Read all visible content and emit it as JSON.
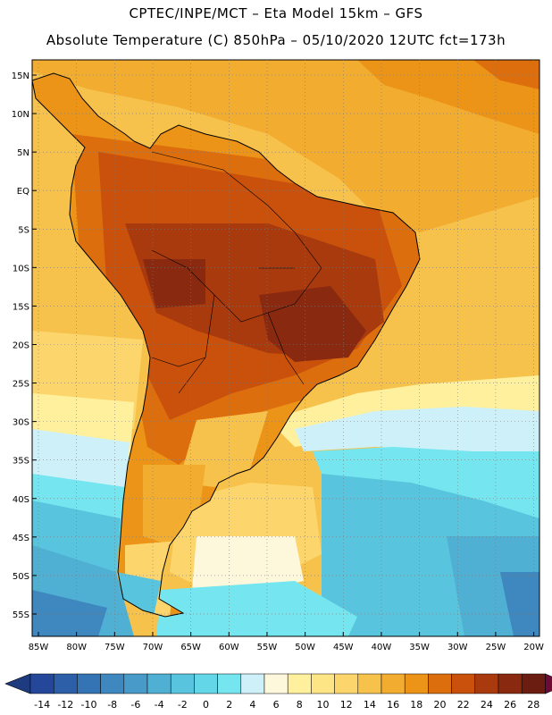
{
  "title_line1": "CPTEC/INPE/MCT –  Eta Model 15km – GFS",
  "title_line2": "Absolute Temperature (C) 850hPa – 05/10/2020 12UTC fct=173h",
  "lat_labels": [
    "15N",
    "10N",
    "5N",
    "EQ",
    "5S",
    "10S",
    "15S",
    "20S",
    "25S",
    "30S",
    "35S",
    "40S",
    "45S",
    "50S",
    "55S"
  ],
  "lon_labels": [
    "85W",
    "80W",
    "75W",
    "70W",
    "65W",
    "60W",
    "55W",
    "50W",
    "45W",
    "40W",
    "35W",
    "30W",
    "25W",
    "20W"
  ],
  "colorbar": {
    "ticks": [
      "-14",
      "-12",
      "-10",
      "-8",
      "-6",
      "-4",
      "-2",
      "0",
      "2",
      "4",
      "6",
      "8",
      "10",
      "12",
      "14",
      "16",
      "18",
      "20",
      "22",
      "24",
      "26",
      "28"
    ],
    "colors": [
      "#25479a",
      "#2d5ea8",
      "#3574b4",
      "#3f87bf",
      "#489bc8",
      "#4fb0d3",
      "#59c4dd",
      "#63d6e7",
      "#75e6ef",
      "#cef1f9",
      "#fdf8dc",
      "#fff09e",
      "#fde484",
      "#fcd66c",
      "#f6c24b",
      "#f2ac30",
      "#ec9417",
      "#dc6e0e",
      "#c9510c",
      "#a83a0d",
      "#892a10",
      "#6c1d12"
    ],
    "low_color": "#1f3b80",
    "high_color": "#6e0a36"
  }
}
